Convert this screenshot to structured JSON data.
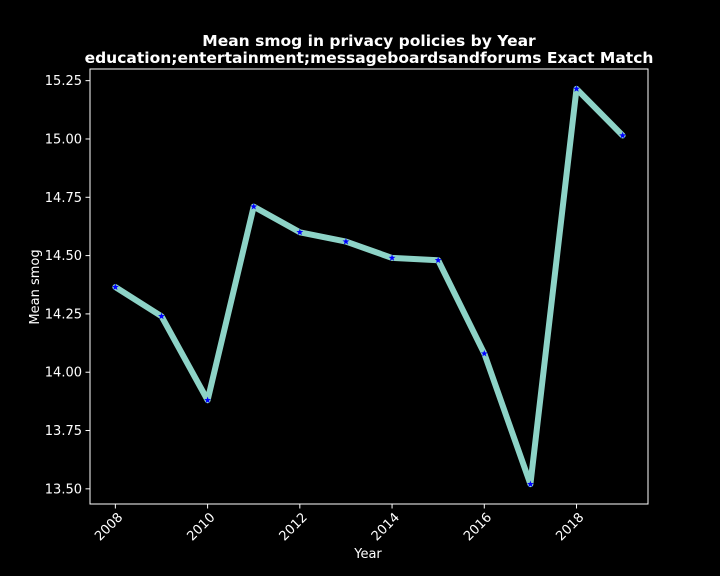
{
  "chart_data": {
    "type": "line",
    "title_line1": "Mean smog in privacy policies by Year",
    "title_line2": "education;entertainment;messageboardsandforums Exact Match",
    "xlabel": "Year",
    "ylabel": "Mean smog",
    "x": [
      2008,
      2009,
      2010,
      2011,
      2012,
      2013,
      2014,
      2015,
      2016,
      2017,
      2018,
      2019
    ],
    "y": [
      14.365,
      14.24,
      13.88,
      14.71,
      14.6,
      14.56,
      14.49,
      14.48,
      14.08,
      13.52,
      15.215,
      15.015
    ],
    "xticks": [
      2008,
      2010,
      2012,
      2014,
      2016,
      2018
    ],
    "yticks": [
      13.5,
      13.75,
      14.0,
      14.25,
      14.5,
      14.75,
      15.0,
      15.25
    ],
    "ytick_labels": [
      "13.50",
      "13.75",
      "14.00",
      "14.25",
      "14.50",
      "14.75",
      "15.00",
      "15.25"
    ],
    "xlim": [
      2007.45,
      2019.55
    ],
    "ylim": [
      13.435,
      15.3
    ],
    "grid": false,
    "line_color": "#8dd3c7",
    "marker_color": "#0000ff",
    "marker": "star",
    "background": "#000000",
    "foreground": "#ffffff"
  }
}
